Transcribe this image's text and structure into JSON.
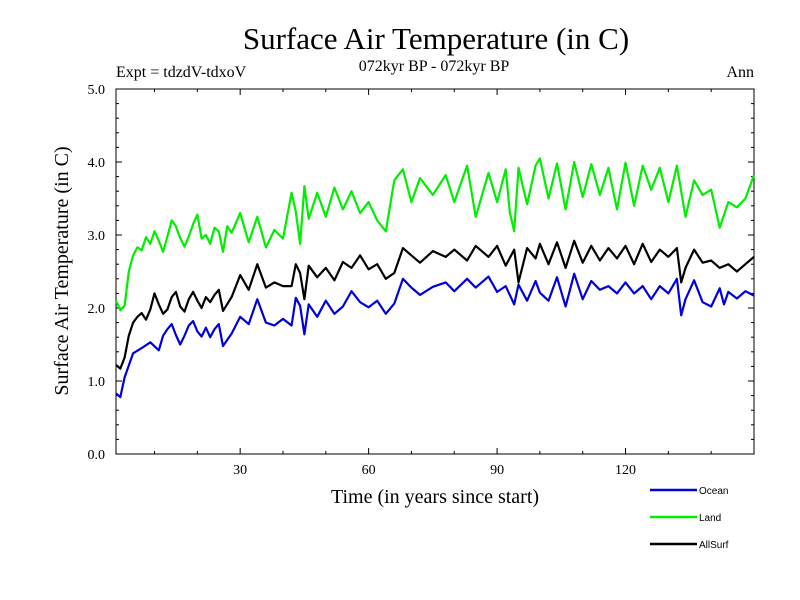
{
  "chart_data": {
    "type": "line",
    "title": "Surface Air Temperature (in C)",
    "subtitle": "072kyr BP - 072kyr BP",
    "experiment_label": "Expt = tdzdV-tdxoV",
    "period_label": "Ann",
    "xlabel": "Time (in years since start)",
    "ylabel": "Surface Air Temperature (in C)",
    "xlim": [
      1,
      150
    ],
    "ylim": [
      0,
      5
    ],
    "xticks": [
      30,
      60,
      90,
      120
    ],
    "yticks": [
      0,
      1,
      2,
      3,
      4,
      5
    ],
    "ytick_labels": [
      "0.0",
      "1.0",
      "2.0",
      "3.0",
      "4.0",
      "5.0"
    ],
    "grid": false,
    "legend_position": "bottom-right",
    "series": [
      {
        "name": "Ocean",
        "color": "#0000dd",
        "anchors": {
          "x": [
            1,
            2,
            3,
            5,
            7,
            9,
            11,
            12,
            13,
            14,
            15,
            16,
            17,
            18,
            19,
            20,
            21,
            22,
            23,
            24,
            25,
            26,
            28,
            30,
            32,
            34,
            36,
            38,
            40,
            42,
            43,
            44,
            45,
            46,
            48,
            50,
            52,
            54,
            56,
            58,
            60,
            62,
            64,
            66,
            68,
            70,
            72,
            75,
            78,
            80,
            83,
            85,
            88,
            90,
            92,
            94,
            95,
            97,
            99,
            100,
            102,
            104,
            106,
            108,
            110,
            112,
            114,
            116,
            118,
            120,
            122,
            124,
            126,
            128,
            130,
            132,
            133,
            134,
            136,
            138,
            140,
            142,
            143,
            144,
            146,
            148,
            150
          ],
          "y": [
            0.83,
            0.78,
            1.05,
            1.38,
            1.45,
            1.53,
            1.42,
            1.62,
            1.71,
            1.78,
            1.63,
            1.5,
            1.62,
            1.76,
            1.82,
            1.68,
            1.61,
            1.73,
            1.6,
            1.71,
            1.78,
            1.48,
            1.65,
            1.88,
            1.78,
            2.12,
            1.8,
            1.76,
            1.85,
            1.76,
            2.14,
            2.03,
            1.64,
            2.05,
            1.88,
            2.1,
            1.92,
            2.02,
            2.23,
            2.08,
            2.01,
            2.1,
            1.92,
            2.06,
            2.4,
            2.28,
            2.18,
            2.29,
            2.35,
            2.23,
            2.4,
            2.28,
            2.43,
            2.22,
            2.3,
            2.05,
            2.32,
            2.1,
            2.37,
            2.21,
            2.1,
            2.42,
            2.02,
            2.47,
            2.12,
            2.37,
            2.25,
            2.3,
            2.2,
            2.35,
            2.2,
            2.3,
            2.12,
            2.3,
            2.2,
            2.4,
            1.9,
            2.12,
            2.38,
            2.08,
            2.02,
            2.27,
            2.05,
            2.22,
            2.13,
            2.23,
            2.17
          ]
        }
      },
      {
        "name": "Land",
        "color": "#00ee00",
        "anchors": {
          "x": [
            1,
            2,
            3,
            4,
            5,
            6,
            7,
            8,
            9,
            10,
            11,
            12,
            13,
            14,
            15,
            16,
            17,
            18,
            19,
            20,
            21,
            22,
            23,
            24,
            25,
            26,
            27,
            28,
            30,
            32,
            34,
            36,
            38,
            40,
            42,
            43,
            44,
            45,
            46,
            48,
            50,
            52,
            54,
            56,
            58,
            60,
            62,
            64,
            66,
            68,
            70,
            72,
            75,
            78,
            80,
            83,
            85,
            88,
            90,
            92,
            93,
            94,
            95,
            97,
            99,
            100,
            102,
            104,
            106,
            108,
            110,
            112,
            114,
            116,
            118,
            120,
            122,
            124,
            126,
            128,
            130,
            132,
            134,
            136,
            138,
            140,
            142,
            144,
            146,
            148,
            150
          ],
          "y": [
            2.1,
            1.97,
            2.03,
            2.5,
            2.72,
            2.83,
            2.79,
            2.97,
            2.88,
            3.05,
            2.92,
            2.77,
            2.98,
            3.2,
            3.12,
            2.96,
            2.84,
            2.98,
            3.15,
            3.28,
            2.95,
            3.0,
            2.88,
            3.1,
            3.05,
            2.77,
            3.12,
            3.03,
            3.3,
            2.9,
            3.25,
            2.83,
            3.07,
            2.95,
            3.58,
            3.32,
            2.88,
            3.67,
            3.22,
            3.58,
            3.25,
            3.65,
            3.35,
            3.6,
            3.3,
            3.45,
            3.2,
            3.05,
            3.75,
            3.9,
            3.45,
            3.78,
            3.55,
            3.82,
            3.45,
            3.95,
            3.25,
            3.85,
            3.45,
            3.9,
            3.3,
            3.05,
            3.92,
            3.42,
            3.95,
            4.05,
            3.5,
            3.98,
            3.35,
            4.0,
            3.52,
            3.97,
            3.55,
            3.92,
            3.35,
            3.99,
            3.4,
            3.95,
            3.62,
            3.92,
            3.45,
            3.95,
            3.25,
            3.75,
            3.55,
            3.62,
            3.1,
            3.45,
            3.38,
            3.5,
            3.82
          ]
        }
      },
      {
        "name": "AllSurf",
        "color": "#000000",
        "anchors": {
          "x": [
            1,
            2,
            3,
            4,
            5,
            6,
            7,
            8,
            9,
            10,
            11,
            12,
            13,
            14,
            15,
            16,
            17,
            18,
            19,
            20,
            21,
            22,
            23,
            24,
            25,
            26,
            28,
            30,
            32,
            34,
            36,
            38,
            40,
            42,
            43,
            44,
            45,
            46,
            48,
            50,
            52,
            54,
            56,
            58,
            60,
            62,
            64,
            66,
            68,
            70,
            72,
            75,
            78,
            80,
            83,
            85,
            88,
            90,
            92,
            94,
            95,
            97,
            99,
            100,
            102,
            104,
            106,
            108,
            110,
            112,
            114,
            116,
            118,
            120,
            122,
            124,
            126,
            128,
            130,
            132,
            133,
            134,
            136,
            138,
            140,
            142,
            144,
            146,
            148,
            150
          ],
          "y": [
            1.22,
            1.17,
            1.32,
            1.62,
            1.8,
            1.88,
            1.93,
            1.84,
            1.98,
            2.2,
            2.05,
            1.92,
            1.98,
            2.15,
            2.22,
            2.02,
            1.95,
            2.12,
            2.22,
            2.1,
            2.0,
            2.15,
            2.08,
            2.18,
            2.25,
            1.96,
            2.15,
            2.45,
            2.25,
            2.6,
            2.28,
            2.35,
            2.3,
            2.3,
            2.6,
            2.48,
            2.12,
            2.58,
            2.42,
            2.55,
            2.38,
            2.63,
            2.55,
            2.72,
            2.53,
            2.6,
            2.4,
            2.48,
            2.82,
            2.72,
            2.62,
            2.78,
            2.7,
            2.8,
            2.65,
            2.85,
            2.7,
            2.85,
            2.58,
            2.8,
            2.35,
            2.82,
            2.68,
            2.88,
            2.6,
            2.9,
            2.55,
            2.92,
            2.62,
            2.85,
            2.65,
            2.82,
            2.68,
            2.85,
            2.6,
            2.88,
            2.63,
            2.8,
            2.7,
            2.82,
            2.35,
            2.55,
            2.8,
            2.62,
            2.65,
            2.55,
            2.6,
            2.5,
            2.6,
            2.7
          ]
        }
      }
    ]
  }
}
